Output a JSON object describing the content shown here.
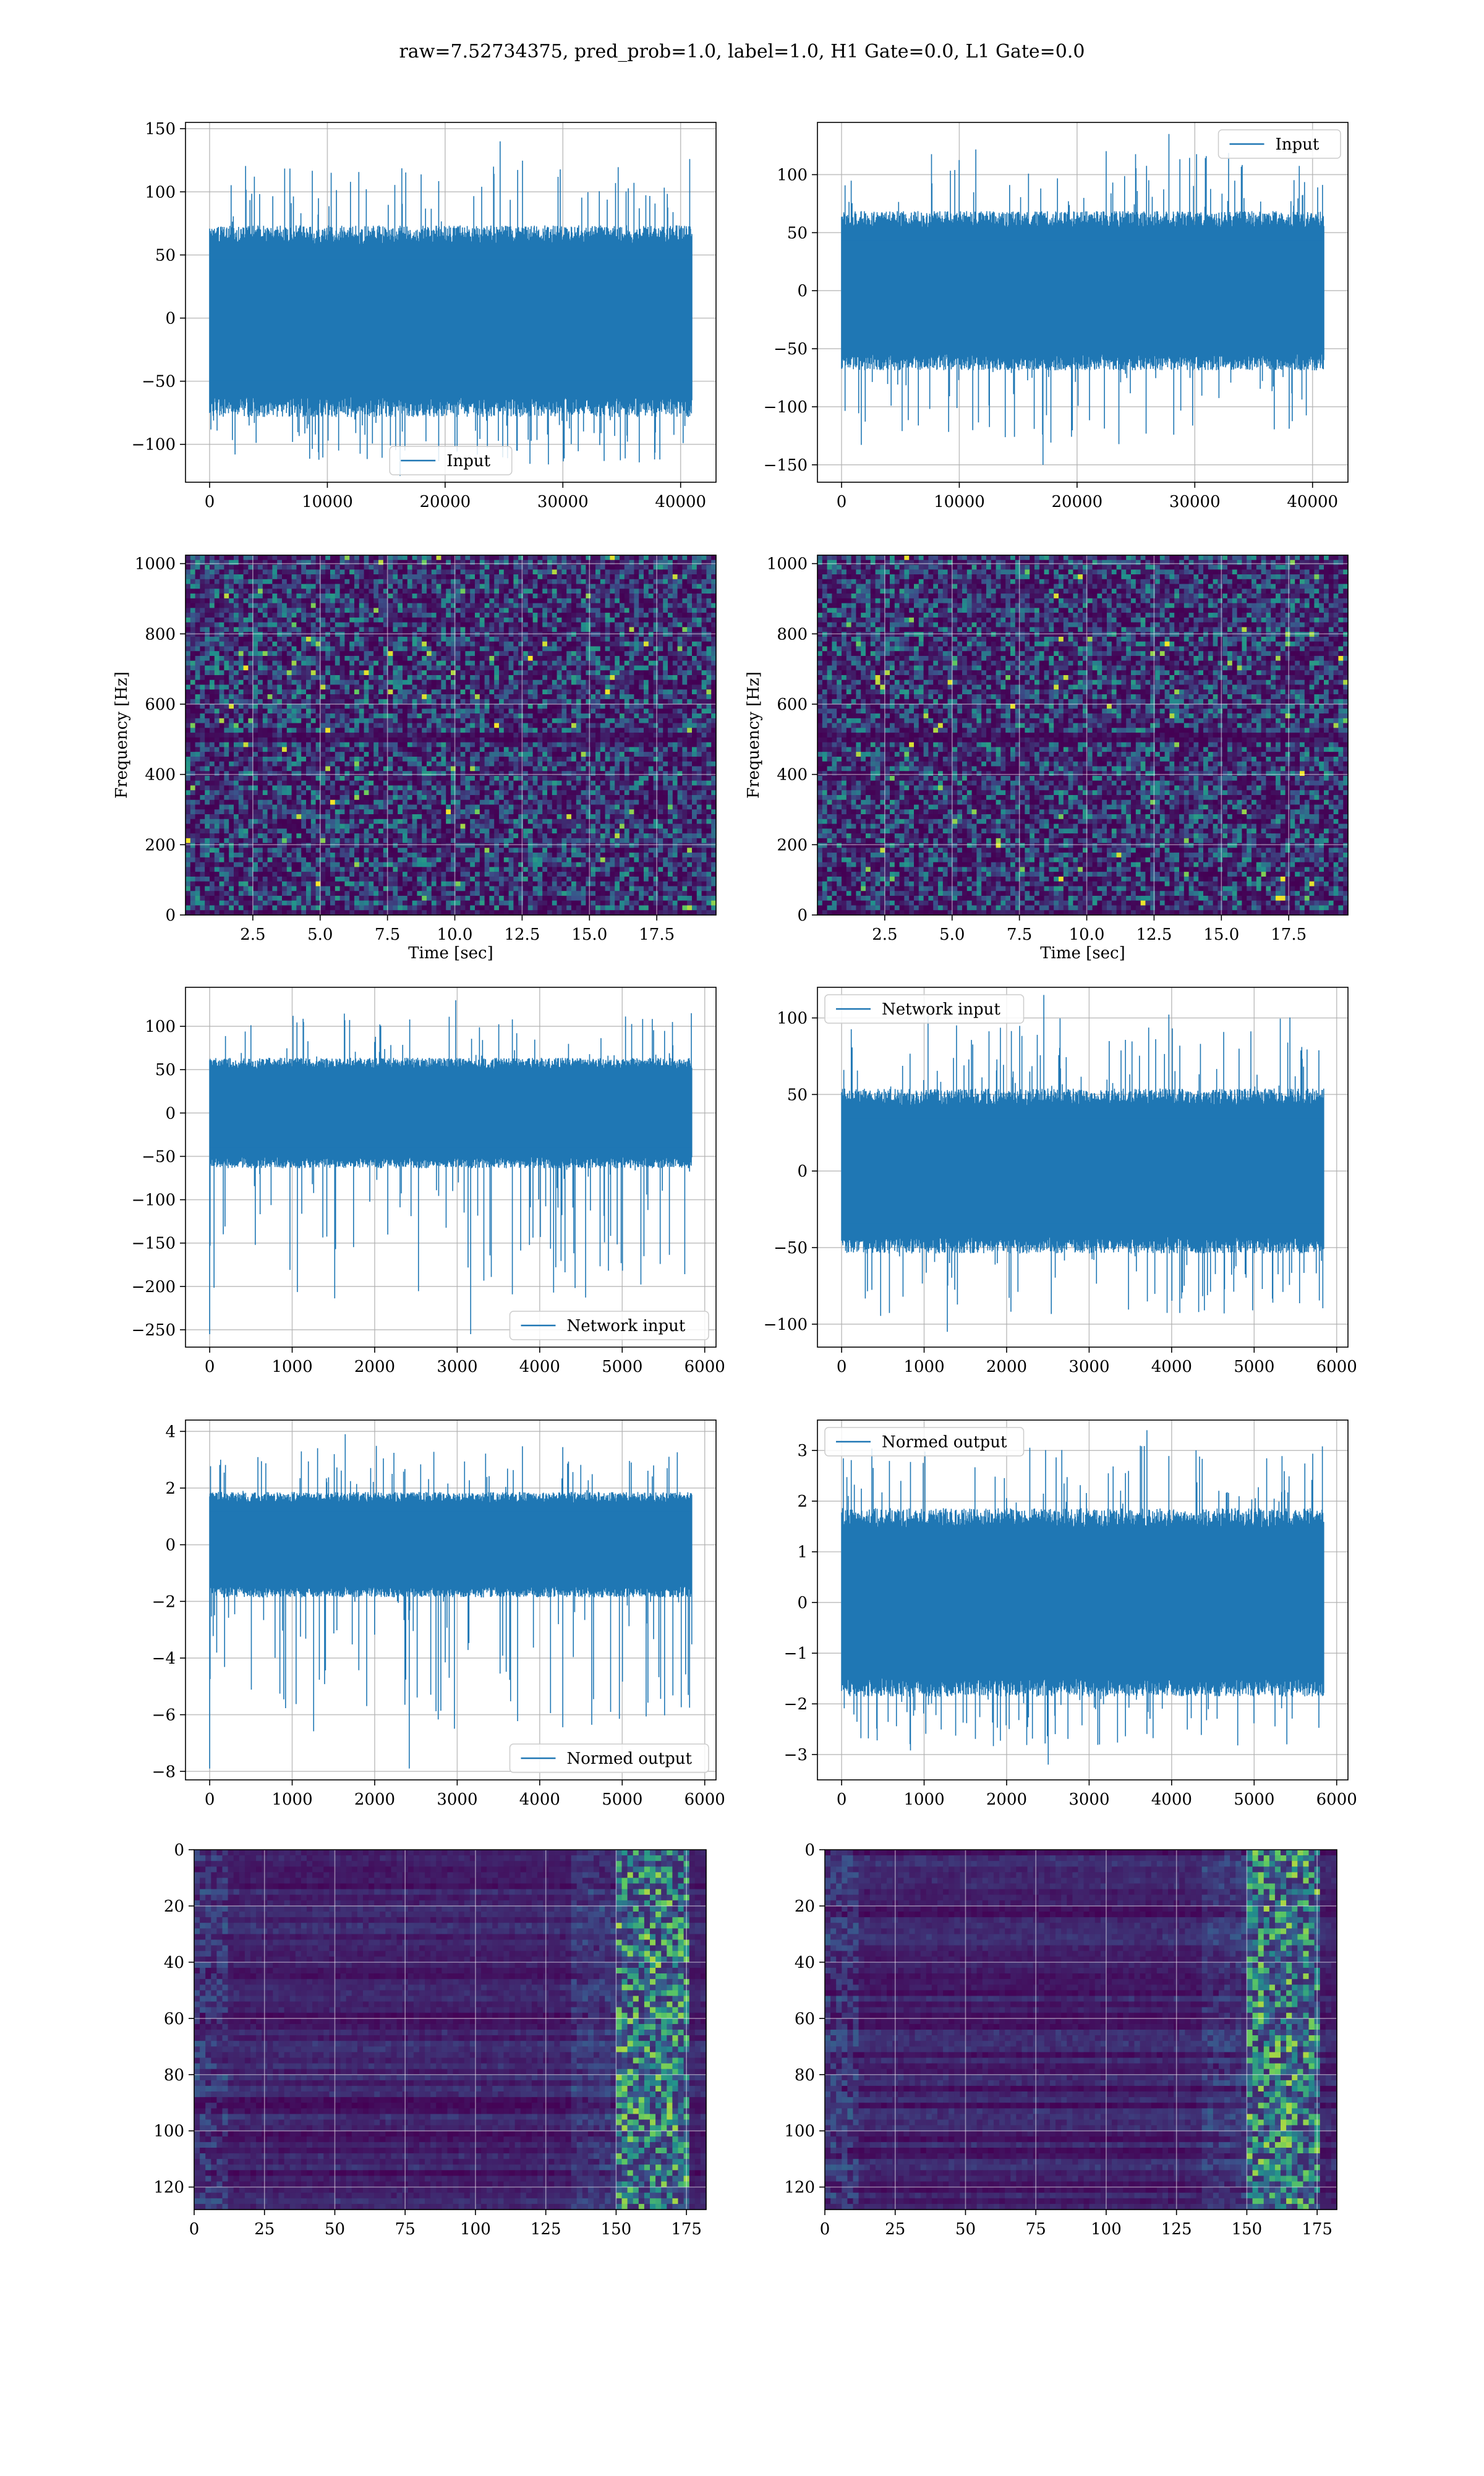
{
  "suptitle": "raw=7.52734375, pred_prob=1.0, label=1.0, H1 Gate=0.0, L1 Gate=0.0",
  "colors": {
    "line": "#1f77b4",
    "grid": "#b0b0b0",
    "viridis_low": "#440154",
    "viridis_mid": "#21918c",
    "viridis_high": "#fde725"
  },
  "chart_data": [
    {
      "id": "h1-input",
      "type": "line",
      "title": "",
      "xlabel": "",
      "ylabel": "",
      "xlim": [
        -2048,
        43008
      ],
      "ylim": [
        -130,
        155
      ],
      "xticks": [
        0,
        10000,
        20000,
        30000,
        40000
      ],
      "yticks": [
        -100,
        -50,
        0,
        50,
        100,
        150
      ],
      "grid": true,
      "legend": "lower center",
      "series": [
        {
          "name": "Input",
          "n_points": 40960,
          "baseline": 0,
          "band": [
            -80,
            75
          ],
          "extremes": [
            -125,
            140
          ]
        }
      ]
    },
    {
      "id": "l1-input",
      "type": "line",
      "title": "",
      "xlabel": "",
      "ylabel": "",
      "xlim": [
        -2048,
        43008
      ],
      "ylim": [
        -165,
        145
      ],
      "xticks": [
        0,
        10000,
        20000,
        30000,
        40000
      ],
      "yticks": [
        -150,
        -100,
        -50,
        0,
        50,
        100
      ],
      "grid": true,
      "legend": "upper right",
      "series": [
        {
          "name": "Input",
          "n_points": 40960,
          "baseline": 0,
          "band": [
            -70,
            70
          ],
          "extremes": [
            -150,
            135
          ]
        }
      ]
    },
    {
      "id": "h1-spectrogram",
      "type": "heatmap",
      "title": "",
      "xlabel": "Time [sec]",
      "ylabel": "Frequency [Hz]",
      "xlim": [
        0,
        19.7
      ],
      "ylim": [
        0,
        1024
      ],
      "xticks": [
        2.5,
        5.0,
        7.5,
        10.0,
        12.5,
        15.0,
        17.5
      ],
      "yticks": [
        0,
        200,
        400,
        600,
        800,
        1000
      ],
      "xtick_labels": [
        "2.5",
        "5.0",
        "7.5",
        "10.0",
        "12.5",
        "15.0",
        "17.5"
      ],
      "grid": true,
      "colormap": "viridis",
      "dark_band_hz": [
        490,
        520
      ]
    },
    {
      "id": "l1-spectrogram",
      "type": "heatmap",
      "title": "",
      "xlabel": "Time [sec]",
      "ylabel": "Frequency [Hz]",
      "xlim": [
        0,
        19.7
      ],
      "ylim": [
        0,
        1024
      ],
      "xticks": [
        2.5,
        5.0,
        7.5,
        10.0,
        12.5,
        15.0,
        17.5
      ],
      "yticks": [
        0,
        200,
        400,
        600,
        800,
        1000
      ],
      "xtick_labels": [
        "2.5",
        "5.0",
        "7.5",
        "10.0",
        "12.5",
        "15.0",
        "17.5"
      ],
      "grid": true,
      "colormap": "viridis",
      "dark_band_hz": [
        490,
        520
      ]
    },
    {
      "id": "h1-network-input",
      "type": "line",
      "title": "",
      "xlabel": "",
      "ylabel": "",
      "xlim": [
        -293,
        6137
      ],
      "ylim": [
        -270,
        145
      ],
      "xticks": [
        0,
        1000,
        2000,
        3000,
        4000,
        5000,
        6000
      ],
      "yticks": [
        -250,
        -200,
        -150,
        -100,
        -50,
        0,
        50,
        100
      ],
      "grid": true,
      "legend": "lower right",
      "series": [
        {
          "name": "Network input",
          "n_points": 5844,
          "baseline": 0,
          "band": [
            -65,
            65
          ],
          "extremes": [
            -255,
            130
          ]
        }
      ]
    },
    {
      "id": "l1-network-input",
      "type": "line",
      "title": "",
      "xlabel": "",
      "ylabel": "",
      "xlim": [
        -293,
        6137
      ],
      "ylim": [
        -115,
        120
      ],
      "xticks": [
        0,
        1000,
        2000,
        3000,
        4000,
        5000,
        6000
      ],
      "yticks": [
        -100,
        -50,
        0,
        50,
        100
      ],
      "grid": true,
      "legend": "upper left",
      "series": [
        {
          "name": "Network input",
          "n_points": 5844,
          "baseline": 0,
          "band": [
            -55,
            55
          ],
          "extremes": [
            -105,
            115
          ]
        }
      ]
    },
    {
      "id": "h1-normed-output",
      "type": "line",
      "title": "",
      "xlabel": "",
      "ylabel": "",
      "xlim": [
        -293,
        6137
      ],
      "ylim": [
        -8.3,
        4.4
      ],
      "xticks": [
        0,
        1000,
        2000,
        3000,
        4000,
        5000,
        6000
      ],
      "yticks": [
        -8,
        -6,
        -4,
        -2,
        0,
        2,
        4
      ],
      "grid": true,
      "legend": "lower right",
      "series": [
        {
          "name": "Normed output",
          "n_points": 5844,
          "baseline": 0,
          "band": [
            -1.9,
            1.9
          ],
          "extremes": [
            -7.9,
            3.9
          ]
        }
      ]
    },
    {
      "id": "l1-normed-output",
      "type": "line",
      "title": "",
      "xlabel": "",
      "ylabel": "",
      "xlim": [
        -293,
        6137
      ],
      "ylim": [
        -3.5,
        3.6
      ],
      "xticks": [
        0,
        1000,
        2000,
        3000,
        4000,
        5000,
        6000
      ],
      "yticks": [
        -3,
        -2,
        -1,
        0,
        1,
        2,
        3
      ],
      "grid": true,
      "legend": "upper left",
      "series": [
        {
          "name": "Normed output",
          "n_points": 5844,
          "baseline": 0,
          "band": [
            -1.9,
            1.9
          ],
          "extremes": [
            -3.2,
            3.4
          ]
        }
      ]
    },
    {
      "id": "h1-feature-map",
      "type": "heatmap",
      "title": "",
      "xlabel": "",
      "ylabel": "",
      "xlim": [
        0,
        182
      ],
      "ylim": [
        128,
        0
      ],
      "xticks": [
        0,
        25,
        50,
        75,
        100,
        125,
        150,
        175
      ],
      "yticks": [
        0,
        20,
        40,
        60,
        80,
        100,
        120
      ],
      "grid": true,
      "colormap": "viridis",
      "bright_columns": [
        150,
        175
      ]
    },
    {
      "id": "l1-feature-map",
      "type": "heatmap",
      "title": "",
      "xlabel": "",
      "ylabel": "",
      "xlim": [
        0,
        182
      ],
      "ylim": [
        128,
        0
      ],
      "xticks": [
        0,
        25,
        50,
        75,
        100,
        125,
        150,
        175
      ],
      "yticks": [
        0,
        20,
        40,
        60,
        80,
        100,
        120
      ],
      "grid": true,
      "colormap": "viridis",
      "bright_columns": [
        150,
        175
      ]
    }
  ]
}
